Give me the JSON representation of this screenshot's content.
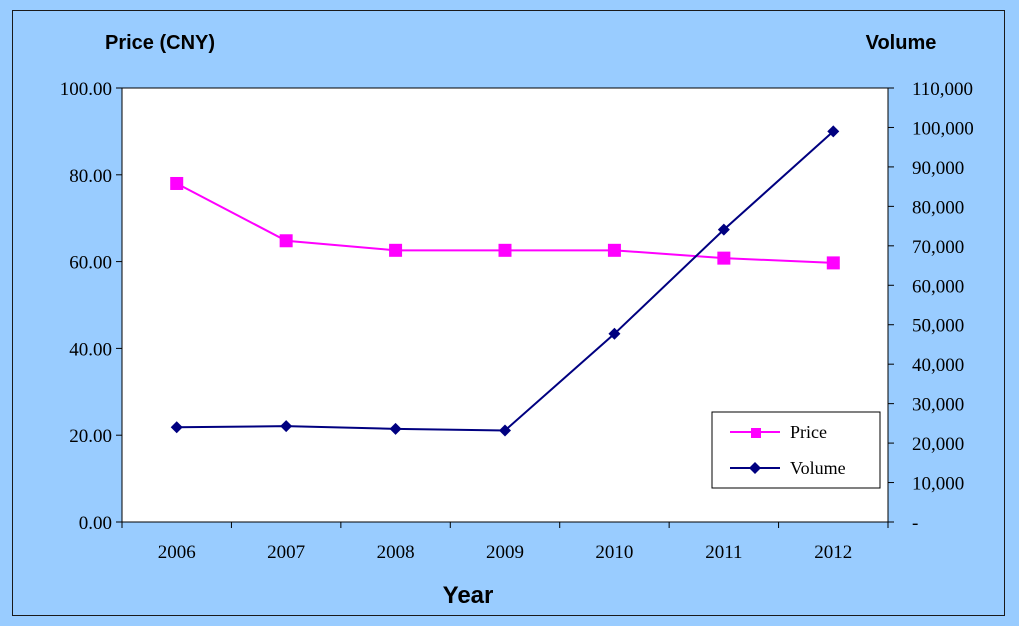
{
  "chart_data": {
    "type": "line",
    "title": "",
    "xlabel": "Year",
    "ylabel_left": "Price (CNY)",
    "ylabel_right": "Volume",
    "categories": [
      "2006",
      "2007",
      "2008",
      "2009",
      "2010",
      "2011",
      "2012"
    ],
    "y_left": {
      "ylim": [
        0,
        100
      ],
      "ticks": [
        0,
        20,
        40,
        60,
        80,
        100
      ],
      "tick_labels": [
        "0.00",
        "20.00",
        "40.00",
        "60.00",
        "80.00",
        "100.00"
      ]
    },
    "y_right": {
      "ylim": [
        0,
        110000
      ],
      "ticks": [
        0,
        10000,
        20000,
        30000,
        40000,
        50000,
        60000,
        70000,
        80000,
        90000,
        100000,
        110000
      ],
      "tick_labels": [
        "-",
        "10,000",
        "20,000",
        "30,000",
        "40,000",
        "50,000",
        "60,000",
        "70,000",
        "80,000",
        "90,000",
        "100,000",
        "110,000"
      ]
    },
    "series": [
      {
        "name": "Price",
        "axis": "left",
        "marker": "square",
        "color": "#FF00FF",
        "values": [
          78.0,
          64.8,
          62.6,
          62.6,
          62.6,
          60.8,
          59.7
        ]
      },
      {
        "name": "Volume",
        "axis": "right",
        "marker": "diamond",
        "color": "#000080",
        "values": [
          24000,
          24300,
          23600,
          23200,
          47700,
          74100,
          99000
        ]
      }
    ],
    "grid": false,
    "legend_position": "bottom-right"
  },
  "colors": {
    "background": "#99CCFF",
    "plot_area": "#FFFFFF",
    "price_line": "#FF00FF",
    "volume_line": "#000080"
  }
}
